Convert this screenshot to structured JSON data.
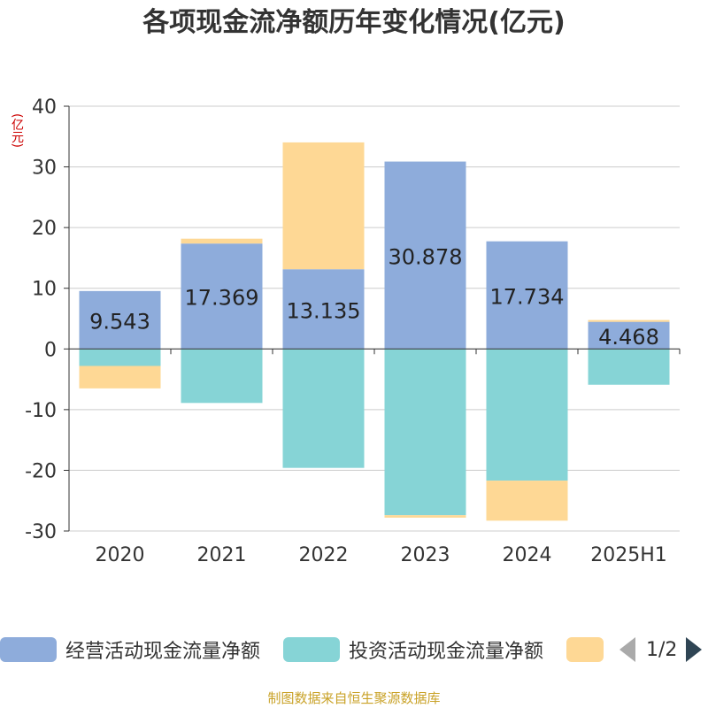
{
  "title": "各项现金流净额历年变化情况(亿元)",
  "unit_label": "(亿元)",
  "footer": "制图数据来自恒生聚源数据库",
  "legend": {
    "items": [
      {
        "label": "经营活动现金流量净额",
        "color": "#8eacdb"
      },
      {
        "label": "投资活动现金流量净额",
        "color": "#86d4d6"
      },
      {
        "label": "",
        "color": "#fed895"
      }
    ],
    "page": "1/2"
  },
  "chart_data": {
    "type": "bar",
    "stacked": true,
    "categories": [
      "2020",
      "2021",
      "2022",
      "2023",
      "2024",
      "2025H1"
    ],
    "ylim": [
      -30,
      40
    ],
    "yticks": [
      -30,
      -20,
      -10,
      0,
      10,
      20,
      30,
      40
    ],
    "grid": true,
    "legend_position": "bottom",
    "series": [
      {
        "name": "经营活动现金流量净额",
        "color": "#8eacdb",
        "values": [
          9.543,
          17.369,
          13.135,
          30.878,
          17.734,
          4.468
        ],
        "labels": [
          "9.543",
          "17.369",
          "13.135",
          "30.878",
          "17.734",
          "4.468"
        ]
      },
      {
        "name": "投资活动现金流量净额",
        "color": "#86d4d6",
        "values": [
          -2.8,
          -8.9,
          -19.6,
          -27.4,
          -21.7,
          -5.9
        ]
      },
      {
        "color": "#fed895",
        "values": [
          -3.7,
          0.8,
          20.9,
          -0.4,
          -6.6,
          0.3
        ]
      }
    ]
  }
}
